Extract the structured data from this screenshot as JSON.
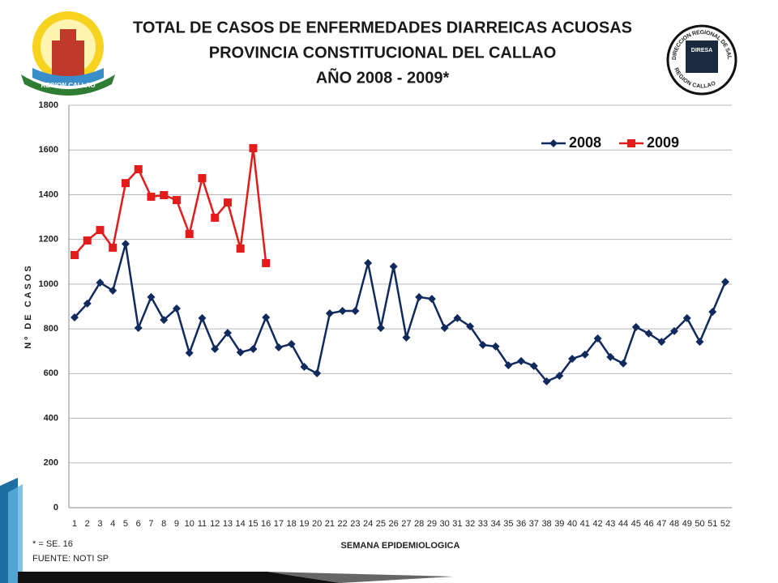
{
  "logos": {
    "left": "REGION CALLAO",
    "right": [
      "DIRECCION REGIONAL DE SALUD",
      "DIRESA",
      "REGION CALLAO"
    ]
  },
  "chart_data": {
    "type": "line",
    "title": [
      "TOTAL DE CASOS DE ENFERMEDADES  DIARREICAS  ACUOSAS",
      "PROVINCIA  CONSTITUCIONAL  DEL  CALLAO",
      "AÑO 2008 - 2009*"
    ],
    "x_label": "SEMANA EPIDEMIOLOGICA",
    "y_label": "Nº DE CASOS",
    "notes": [
      "* = SE. 16",
      "FUENTE: NOTI SP"
    ],
    "categories": [
      "1",
      "2",
      "3",
      "4",
      "5",
      "6",
      "7",
      "8",
      "9",
      "10",
      "11",
      "12",
      "13",
      "14",
      "15",
      "16",
      "17",
      "18",
      "19",
      "20",
      "21",
      "22",
      "23",
      "24",
      "25",
      "26",
      "27",
      "28",
      "29",
      "30",
      "31",
      "32",
      "33",
      "34",
      "35",
      "36",
      "37",
      "38",
      "39",
      "40",
      "41",
      "42",
      "43",
      "44",
      "45",
      "46",
      "47",
      "48",
      "49",
      "50",
      "51",
      "52"
    ],
    "series": [
      {
        "name": "2008",
        "color": "#102a5e",
        "marker": "diamond",
        "values": [
          851,
          913,
          1007,
          971,
          1180,
          804,
          942,
          840,
          891,
          692,
          848,
          710,
          782,
          695,
          710,
          851,
          717,
          732,
          630,
          601,
          869,
          880,
          880,
          1094,
          804,
          1079,
          761,
          942,
          934,
          804,
          848,
          811,
          728,
          721,
          637,
          656,
          634,
          565,
          590,
          666,
          685,
          757,
          674,
          645,
          808,
          779,
          742,
          790,
          848,
          742,
          876,
          1010
        ]
      },
      {
        "name": "2009",
        "color": "#e31b1b",
        "marker": "square",
        "values": [
          1130,
          1195,
          1242,
          1163,
          1452,
          1514,
          1391,
          1398,
          1376,
          1224,
          1474,
          1297,
          1365,
          1159,
          1608,
          1094,
          null,
          null,
          null,
          null,
          null,
          null,
          null,
          null,
          null,
          null,
          null,
          null,
          null,
          null,
          null,
          null,
          null,
          null,
          null,
          null,
          null,
          null,
          null,
          null,
          null,
          null,
          null,
          null,
          null,
          null,
          null,
          null,
          null,
          null,
          null,
          null
        ]
      }
    ],
    "ylim": [
      0,
      1800
    ],
    "yticks": [
      0,
      200,
      400,
      600,
      800,
      1000,
      1200,
      1400,
      1600,
      1800
    ],
    "grid": true,
    "legend": "top-right"
  }
}
